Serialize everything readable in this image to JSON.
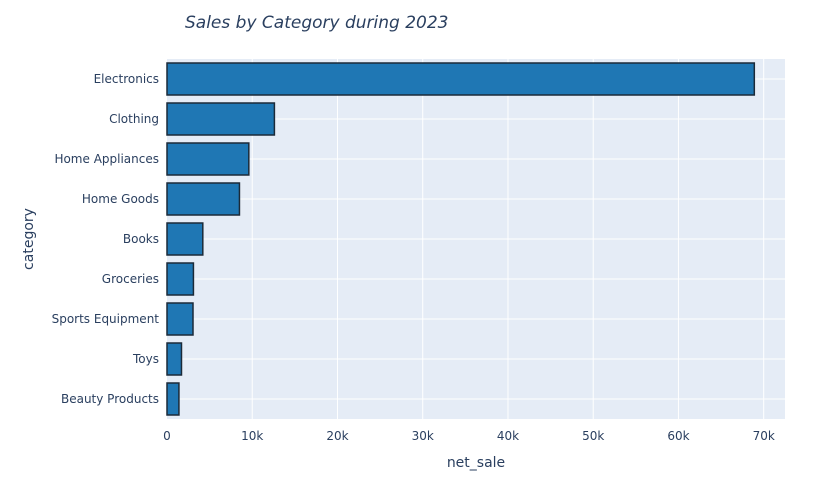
{
  "chart_data": {
    "type": "bar",
    "orientation": "horizontal",
    "title": "Sales by Category during 2023",
    "xlabel": "net_sale",
    "ylabel": "category",
    "categories": [
      "Electronics",
      "Clothing",
      "Home Appliances",
      "Home Goods",
      "Books",
      "Groceries",
      "Sports Equipment",
      "Toys",
      "Beauty Products"
    ],
    "values": [
      68900,
      12600,
      9600,
      8500,
      4200,
      3100,
      3050,
      1700,
      1400
    ],
    "xlim": [
      0,
      72500
    ],
    "x_ticks": [
      0,
      10000,
      20000,
      30000,
      40000,
      50000,
      60000,
      70000
    ],
    "x_tick_labels": [
      "0",
      "10k",
      "20k",
      "30k",
      "40k",
      "50k",
      "60k",
      "70k"
    ],
    "grid": true,
    "colors": {
      "bar_fill": "#1f77b4",
      "bar_stroke": "#1b2a38",
      "plot_background": "#e5ecf6",
      "grid": "#ffffff",
      "text": "#2a3f5f"
    }
  }
}
